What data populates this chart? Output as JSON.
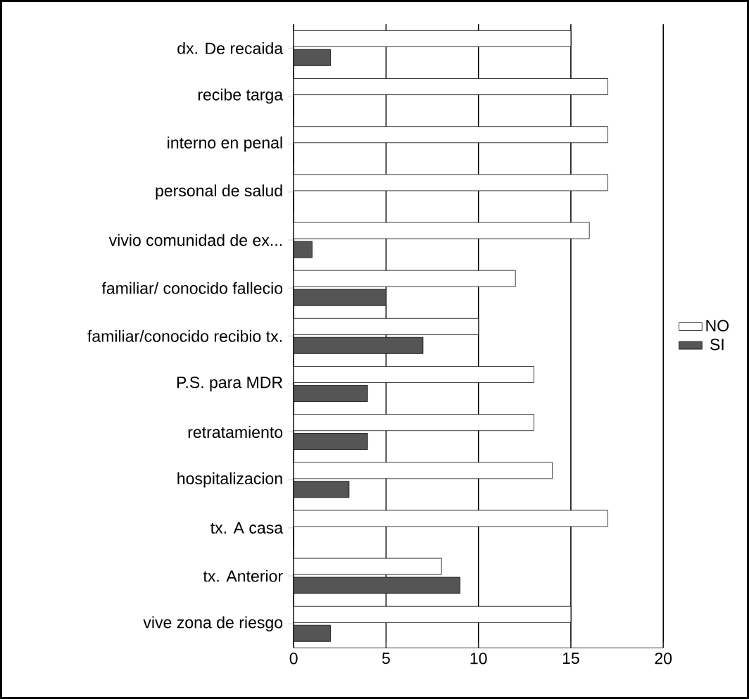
{
  "chart_data": {
    "type": "bar",
    "orientation": "horizontal",
    "categories": [
      "dx. De recaida",
      "recibe targa",
      "interno en penal",
      "personal de salud",
      "vivio comunidad de ex...",
      "familiar/ conocido fallecio",
      "familiar/conocido recibio tx.",
      "P.S. para MDR",
      "retratamiento",
      "hospitalizacion",
      "tx. A casa",
      "tx. Anterior",
      "vive zona de riesgo"
    ],
    "series": [
      {
        "name": "NO",
        "color": "#ffffff",
        "values": [
          15,
          17,
          17,
          17,
          16,
          12,
          10,
          13,
          13,
          14,
          17,
          8,
          15
        ]
      },
      {
        "name": "SI",
        "color": "#555555",
        "values": [
          2,
          0,
          0,
          0,
          1,
          5,
          7,
          4,
          4,
          3,
          0,
          9,
          2
        ]
      }
    ],
    "xlim": [
      0,
      20
    ],
    "xticks": [
      0,
      5,
      10,
      15,
      20
    ],
    "grid": "x",
    "legend": "right"
  }
}
